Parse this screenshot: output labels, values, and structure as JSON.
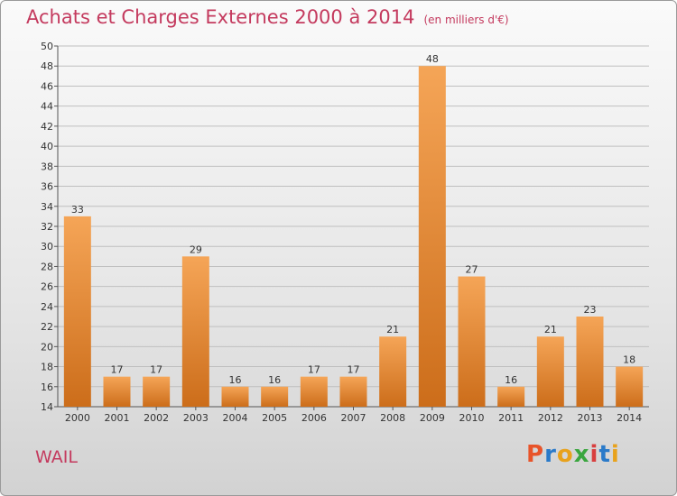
{
  "title": "Achats et Charges Externes 2000 à 2014",
  "unit_label": "(en milliers d'€)",
  "place": "WAIL",
  "logo": {
    "text": "Proxiti",
    "colors": [
      "#e8542a",
      "#2a7ac9",
      "#e8a21c",
      "#3aa63f",
      "#d83f3f",
      "#2a7ac9",
      "#e8a21c"
    ]
  },
  "colors": {
    "bar_top": "#f5a557",
    "bar_bottom": "#cc6d1a",
    "title": "#c43a5e"
  },
  "chart_data": {
    "type": "bar",
    "categories": [
      "2000",
      "2001",
      "2002",
      "2003",
      "2004",
      "2005",
      "2006",
      "2007",
      "2008",
      "2009",
      "2010",
      "2011",
      "2012",
      "2013",
      "2014"
    ],
    "values": [
      33,
      17,
      17,
      29,
      16,
      16,
      17,
      17,
      21,
      48,
      27,
      16,
      21,
      23,
      18
    ],
    "title": "Achats et Charges Externes 2000 à 2014",
    "xlabel": "",
    "ylabel": "",
    "ylim": [
      14,
      50
    ],
    "yticks": [
      14,
      16,
      18,
      20,
      22,
      24,
      26,
      28,
      30,
      32,
      34,
      36,
      38,
      40,
      42,
      44,
      46,
      48,
      50
    ],
    "grid": true
  }
}
